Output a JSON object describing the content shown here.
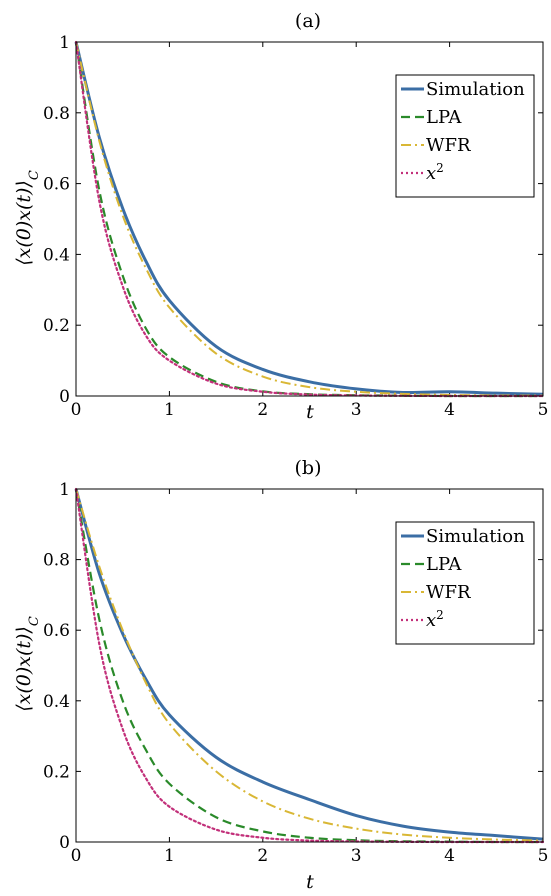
{
  "chart_data": [
    {
      "type": "line",
      "title": "(a)",
      "xlabel": "t",
      "ylabel": "⟨x(0)x(t)⟩_C",
      "xlim": [
        0,
        5
      ],
      "ylim": [
        0,
        1
      ],
      "xticks": [
        "0",
        "1",
        "2",
        "3",
        "4",
        "5"
      ],
      "yticks": [
        "0",
        "0.2",
        "0.4",
        "0.6",
        "0.8",
        "1"
      ],
      "legend_position": "top-right",
      "grid": false,
      "series": [
        {
          "name": "Simulation",
          "color": "#3b6ea5",
          "style": "solid",
          "x": [
            0,
            0.25,
            0.5,
            0.75,
            1.0,
            1.5,
            2.0,
            2.5,
            3.0,
            3.5,
            4.0,
            4.5,
            5.0
          ],
          "y": [
            1.0,
            0.73,
            0.53,
            0.38,
            0.27,
            0.14,
            0.075,
            0.04,
            0.02,
            0.01,
            0.012,
            0.008,
            0.005
          ]
        },
        {
          "name": "LPA",
          "color": "#2a8a2a",
          "style": "dashed",
          "x": [
            0,
            0.25,
            0.5,
            0.75,
            1.0,
            1.5,
            2.0,
            2.5,
            3.0,
            3.5,
            4.0,
            4.5,
            5.0
          ],
          "y": [
            1.0,
            0.58,
            0.34,
            0.19,
            0.11,
            0.04,
            0.013,
            0.005,
            0.002,
            0.001,
            0.0,
            0.0,
            0.0
          ]
        },
        {
          "name": "WFR",
          "color": "#d9b735",
          "style": "dashdot",
          "x": [
            0,
            0.25,
            0.5,
            0.75,
            1.0,
            1.5,
            2.0,
            2.5,
            3.0,
            3.5,
            4.0,
            4.5,
            5.0
          ],
          "y": [
            1.0,
            0.72,
            0.51,
            0.36,
            0.25,
            0.12,
            0.055,
            0.025,
            0.012,
            0.006,
            0.003,
            0.0015,
            0.001
          ]
        },
        {
          "name": "x^2",
          "color": "#c2307a",
          "style": "dotted",
          "x": [
            0,
            0.25,
            0.5,
            0.75,
            1.0,
            1.5,
            2.0,
            2.5,
            3.0,
            3.5,
            4.0,
            4.5,
            5.0
          ],
          "y": [
            1.0,
            0.55,
            0.31,
            0.17,
            0.1,
            0.035,
            0.012,
            0.004,
            0.0015,
            0.0005,
            0.0,
            0.0,
            0.0
          ]
        }
      ]
    },
    {
      "type": "line",
      "title": "(b)",
      "xlabel": "t",
      "ylabel": "⟨x(0)x(t)⟩_C",
      "xlim": [
        0,
        5
      ],
      "ylim": [
        0,
        1
      ],
      "xticks": [
        "0",
        "1",
        "2",
        "3",
        "4",
        "5"
      ],
      "yticks": [
        "0",
        "0.2",
        "0.4",
        "0.6",
        "0.8",
        "1"
      ],
      "legend_position": "top-right",
      "grid": false,
      "series": [
        {
          "name": "Simulation",
          "color": "#3b6ea5",
          "style": "solid",
          "x": [
            0,
            0.25,
            0.5,
            0.75,
            1.0,
            1.5,
            2.0,
            2.5,
            3.0,
            3.5,
            4.0,
            4.5,
            5.0
          ],
          "y": [
            1.0,
            0.76,
            0.59,
            0.46,
            0.36,
            0.24,
            0.17,
            0.12,
            0.075,
            0.045,
            0.028,
            0.018,
            0.008
          ]
        },
        {
          "name": "LPA",
          "color": "#2a8a2a",
          "style": "dashed",
          "x": [
            0,
            0.25,
            0.5,
            0.75,
            1.0,
            1.5,
            2.0,
            2.5,
            3.0,
            3.5,
            4.0,
            4.5,
            5.0
          ],
          "y": [
            1.0,
            0.63,
            0.4,
            0.26,
            0.165,
            0.07,
            0.03,
            0.012,
            0.005,
            0.002,
            0.001,
            0.0,
            0.0
          ]
        },
        {
          "name": "WFR",
          "color": "#d9b735",
          "style": "dashdot",
          "x": [
            0,
            0.25,
            0.5,
            0.75,
            1.0,
            1.5,
            2.0,
            2.5,
            3.0,
            3.5,
            4.0,
            4.5,
            5.0
          ],
          "y": [
            1.0,
            0.78,
            0.6,
            0.45,
            0.335,
            0.2,
            0.115,
            0.066,
            0.038,
            0.021,
            0.012,
            0.007,
            0.004
          ]
        },
        {
          "name": "x^2",
          "color": "#c2307a",
          "style": "dotted",
          "x": [
            0,
            0.25,
            0.5,
            0.75,
            1.0,
            1.5,
            2.0,
            2.5,
            3.0,
            3.5,
            4.0,
            4.5,
            5.0
          ],
          "y": [
            1.0,
            0.56,
            0.32,
            0.18,
            0.1,
            0.035,
            0.012,
            0.004,
            0.0015,
            0.0005,
            0.0,
            0.0,
            0.0
          ]
        }
      ]
    }
  ]
}
